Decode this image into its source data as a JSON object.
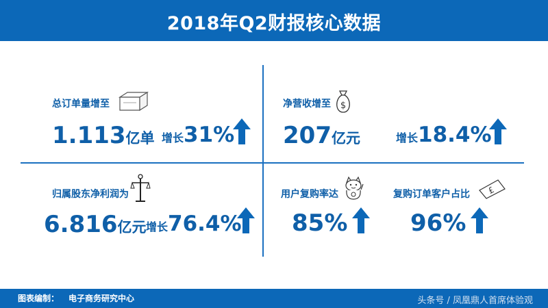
{
  "header": {
    "title": "2018年Q2财报核心数据"
  },
  "metrics": {
    "orders": {
      "label": "总订单量增至",
      "value": "1.113",
      "unit": "亿单",
      "growth_label": "增长",
      "growth_value": "31%",
      "icon": "box-icon"
    },
    "revenue": {
      "label": "净营收增至",
      "value": "207",
      "unit": "亿元",
      "growth_label": "增长",
      "growth_value": "18.4%",
      "icon": "money-bag-icon"
    },
    "profit": {
      "label": "归属股东净利润为",
      "value": "6.816",
      "unit": "亿元",
      "growth_label": "增长",
      "growth_value": "76.4%",
      "icon": "scale-icon"
    },
    "repurchase_rate": {
      "label": "用户复购率达",
      "value": "85%",
      "icon": "lucky-cat-icon"
    },
    "repeat_customer_share": {
      "label": "复购订单客户占比",
      "value": "96%",
      "icon": "banknote-icon"
    }
  },
  "footer": {
    "label": "图表编制：",
    "source": "电子商务研究中心",
    "watermark": "头条号 / 凤凰鼎人首席体验观"
  },
  "colors": {
    "primary": "#0c68b8",
    "text": "#0f5fa8",
    "background": "#ffffff"
  }
}
